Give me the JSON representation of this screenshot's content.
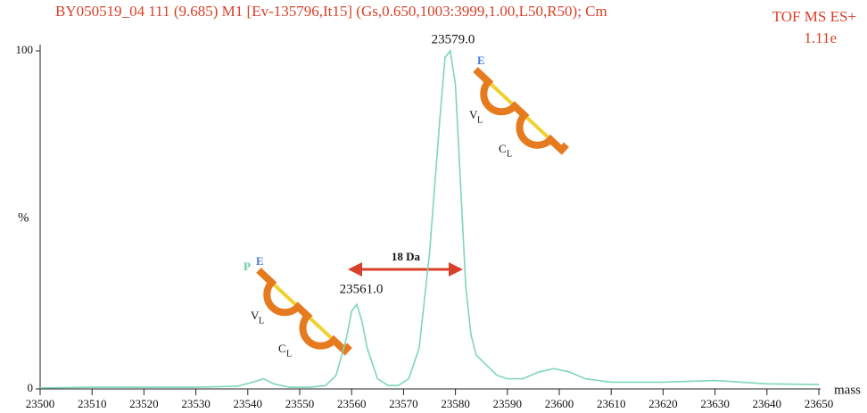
{
  "chart_data": {
    "type": "line",
    "title": "BY050519_04  111 (9.685) M1 [Ev-135796,It15] (Gs,0.650,1003:3999,1.00,L50,R50); Cm",
    "instrument": "TOF MS ES+",
    "intensity": "1.11e",
    "xlabel": "mass",
    "ylabel": "%",
    "x": [
      23500,
      23510,
      23520,
      23530,
      23538,
      23541,
      23543,
      23545,
      23548,
      23552,
      23555,
      23557,
      23559,
      23560,
      23561,
      23562,
      23563,
      23565,
      23567,
      23569,
      23571,
      23573,
      23575,
      23577,
      23578,
      23579,
      23580,
      23581,
      23582,
      23583,
      23584,
      23586,
      23588,
      23590,
      23593,
      23596,
      23599,
      23602,
      23605,
      23610,
      23620,
      23630,
      23635,
      23640,
      23650
    ],
    "series": [
      {
        "color": "#7fd6b6",
        "values": [
          0.3,
          0.5,
          0.5,
          0.5,
          0.8,
          2,
          3,
          1.5,
          0.5,
          0.5,
          1,
          4,
          15,
          23,
          25,
          20,
          12,
          3,
          1,
          1,
          3,
          12,
          40,
          80,
          98,
          100,
          90,
          60,
          30,
          16,
          10,
          7,
          4,
          3,
          3,
          5,
          6,
          5,
          3,
          2,
          2,
          2.5,
          2,
          1.5,
          1.3
        ]
      }
    ],
    "xlim": [
      23500,
      23650
    ],
    "xticks": [
      23500,
      23510,
      23520,
      23530,
      23540,
      23550,
      23560,
      23570,
      23580,
      23590,
      23600,
      23610,
      23620,
      23630,
      23640,
      23650
    ],
    "ylim": [
      0,
      100
    ],
    "yticks": [
      0,
      100
    ],
    "peak_labels": [
      "23579.0",
      "23561.0"
    ],
    "shift_label": "18 Da",
    "icons": [
      {
        "top": "E",
        "v": "V",
        "v_sub": "L",
        "c": "C",
        "c_sub": "L"
      },
      {
        "extra": "P",
        "top": "E",
        "v": "V",
        "v_sub": "L",
        "c": "C",
        "c_sub": "L"
      }
    ]
  }
}
